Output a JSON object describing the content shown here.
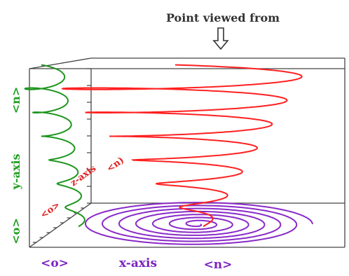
{
  "title": "Point viewed from",
  "labels": {
    "y_axis": "y-axis",
    "y_max": "<n>",
    "y_min": "<o>",
    "x_axis": "x-axis",
    "x_min": "<o>",
    "x_max": "<n>",
    "z_axis": "z-axis",
    "z_max": "<n)",
    "z_min": "<o>"
  },
  "colors": {
    "helix": "#ff2020",
    "y_projection": "#1e961e",
    "x_projection": "#8a2ac8",
    "frame": "#444444",
    "title": "#333333",
    "y_label": "#22a022",
    "x_label": "#7b22c0",
    "z_label": "#e02020"
  },
  "icons": {
    "viewpoint_arrow": "down-arrow-outline-icon"
  }
}
